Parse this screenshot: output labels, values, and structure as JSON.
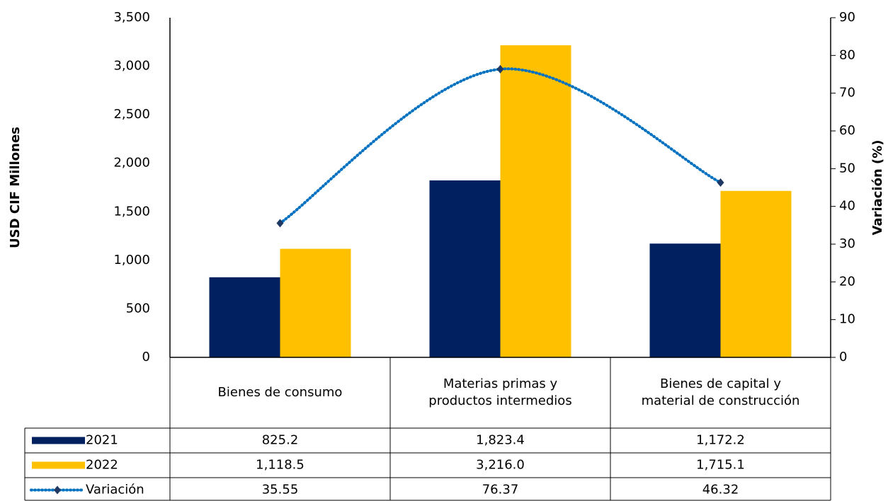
{
  "chart_data": {
    "type": "bar",
    "y_label": "USD CIF Millones",
    "y2_label": "Variación (%)",
    "categories": [
      "Bienes de consumo",
      "Materias primas y productos intermedios",
      "Bienes de capital y material de construcción"
    ],
    "series": [
      {
        "name": "2021",
        "type": "bar",
        "color": "#002060",
        "values": [
          825.2,
          1823.4,
          1172.2
        ],
        "value_labels": [
          "825.2",
          "1,823.4",
          "1,172.2"
        ]
      },
      {
        "name": "2022",
        "type": "bar",
        "color": "#FFC000",
        "values": [
          1118.5,
          3216.0,
          1715.1
        ],
        "value_labels": [
          "1,118.5",
          "3,216.0",
          "1,715.1"
        ]
      },
      {
        "name": "Variación",
        "type": "line",
        "axis": "y2",
        "color": "#0070C0",
        "marker_color": "#1F3864",
        "values": [
          35.55,
          76.37,
          46.32
        ]
      }
    ],
    "ylim": [
      0,
      3500
    ],
    "yticks": [
      0,
      500,
      {
        "value": 1000,
        "label": "1,000"
      },
      {
        "value": 1500,
        "label": "1,500"
      },
      {
        "value": 2000,
        "label": "2,000"
      },
      {
        "value": 2500,
        "label": "2,500"
      },
      {
        "value": 3000,
        "label": "3,000"
      },
      {
        "value": 3500,
        "label": "3,500"
      }
    ],
    "y2lim": [
      0,
      90
    ],
    "y2ticks": [
      0,
      10,
      20,
      30,
      40,
      50,
      60,
      70,
      80,
      90
    ],
    "grid": false
  }
}
